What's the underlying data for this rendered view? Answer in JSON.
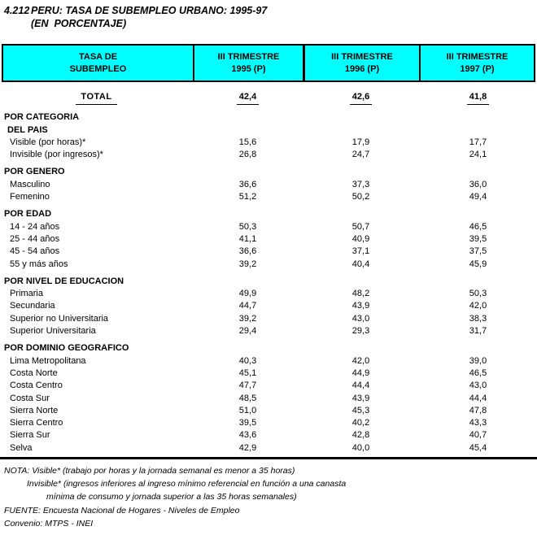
{
  "title": {
    "number": "4.212",
    "line1": "PERU: TASA DE SUBEMPLEO URBANO: 1995-97",
    "line2": "(EN  PORCENTAJE)"
  },
  "colors": {
    "header_bg": "#00ffff",
    "border": "#000000"
  },
  "table": {
    "header": {
      "label_col": {
        "line1": "TASA DE",
        "line2": "SUBEMPLEO"
      },
      "period_cols": [
        {
          "line1": "III TRIMESTRE",
          "line2": "1995 (P)"
        },
        {
          "line1": "III TRIMESTRE",
          "line2": "1996 (P)"
        },
        {
          "line1": "III TRIMESTRE",
          "line2": "1997 (P)"
        }
      ]
    },
    "total_row": {
      "label": "TOTAL",
      "values": [
        "42,4",
        "42,6",
        "41,8"
      ]
    },
    "sections": [
      {
        "headings": [
          "POR CATEGORIA",
          "DEL PAIS"
        ],
        "rows": [
          {
            "label": "Visible (por horas)*",
            "values": [
              "15,6",
              "17,9",
              "17,7"
            ]
          },
          {
            "label": "Invisible (por ingresos)*",
            "values": [
              "26,8",
              "24,7",
              "24,1"
            ]
          }
        ]
      },
      {
        "headings": [
          "POR GENERO"
        ],
        "rows": [
          {
            "label": "Masculino",
            "values": [
              "36,6",
              "37,3",
              "36,0"
            ]
          },
          {
            "label": "Femenino",
            "values": [
              "51,2",
              "50,2",
              "49,4"
            ]
          }
        ]
      },
      {
        "headings": [
          "POR EDAD"
        ],
        "rows": [
          {
            "label": "14 - 24 años",
            "values": [
              "50,3",
              "50,7",
              "46,5"
            ]
          },
          {
            "label": "25 - 44 años",
            "values": [
              "41,1",
              "40,9",
              "39,5"
            ]
          },
          {
            "label": "45 - 54 años",
            "values": [
              "36,6",
              "37,1",
              "37,5"
            ]
          },
          {
            "label": "55 y más años",
            "values": [
              "39,2",
              "40,4",
              "45,9"
            ]
          }
        ]
      },
      {
        "headings": [
          "POR NIVEL DE EDUCACION"
        ],
        "rows": [
          {
            "label": "Primaria",
            "values": [
              "49,9",
              "48,2",
              "50,3"
            ]
          },
          {
            "label": "Secundaria",
            "values": [
              "44,7",
              "43,9",
              "42,0"
            ]
          },
          {
            "label": "Superior no Universitaria",
            "values": [
              "39,2",
              "43,0",
              "38,3"
            ]
          },
          {
            "label": "Superior Universitaria",
            "values": [
              "29,4",
              "29,3",
              "31,7"
            ]
          }
        ]
      },
      {
        "headings": [
          "POR DOMINIO GEOGRAFICO"
        ],
        "rows": [
          {
            "label": "Lima Metropolitana",
            "values": [
              "40,3",
              "42,0",
              "39,0"
            ]
          },
          {
            "label": "Costa Norte",
            "values": [
              "45,1",
              "44,9",
              "46,5"
            ]
          },
          {
            "label": "Costa Centro",
            "values": [
              "47,7",
              "44,4",
              "43,0"
            ]
          },
          {
            "label": "Costa Sur",
            "values": [
              "48,5",
              "43,9",
              "44,4"
            ]
          },
          {
            "label": "Sierra Norte",
            "values": [
              "51,0",
              "45,3",
              "47,8"
            ]
          },
          {
            "label": "Sierra Centro",
            "values": [
              "39,5",
              "40,2",
              "43,3"
            ]
          },
          {
            "label": "Sierra Sur",
            "values": [
              "43,6",
              "42,8",
              "40,7"
            ]
          },
          {
            "label": "Selva",
            "values": [
              "42,9",
              "40,0",
              "45,4"
            ]
          }
        ]
      }
    ]
  },
  "footer": {
    "lines": [
      {
        "text": "NOTA: Visible* (trabajo por horas y la jornada semanal es menor a 35 horas)",
        "indent": 0
      },
      {
        "text": "Invisible* (ingresos inferiores al ingreso mínimo referencial en función a una canasta",
        "indent": 1
      },
      {
        "text": "mínima de consumo y jornada superior a las 35 horas semanales)",
        "indent": 2
      },
      {
        "text": "FUENTE: Encuesta Nacional de Hogares - Niveles de Empleo",
        "indent": 0
      },
      {
        "text": "Convenio: MTPS - INEI",
        "indent": 0
      }
    ]
  }
}
